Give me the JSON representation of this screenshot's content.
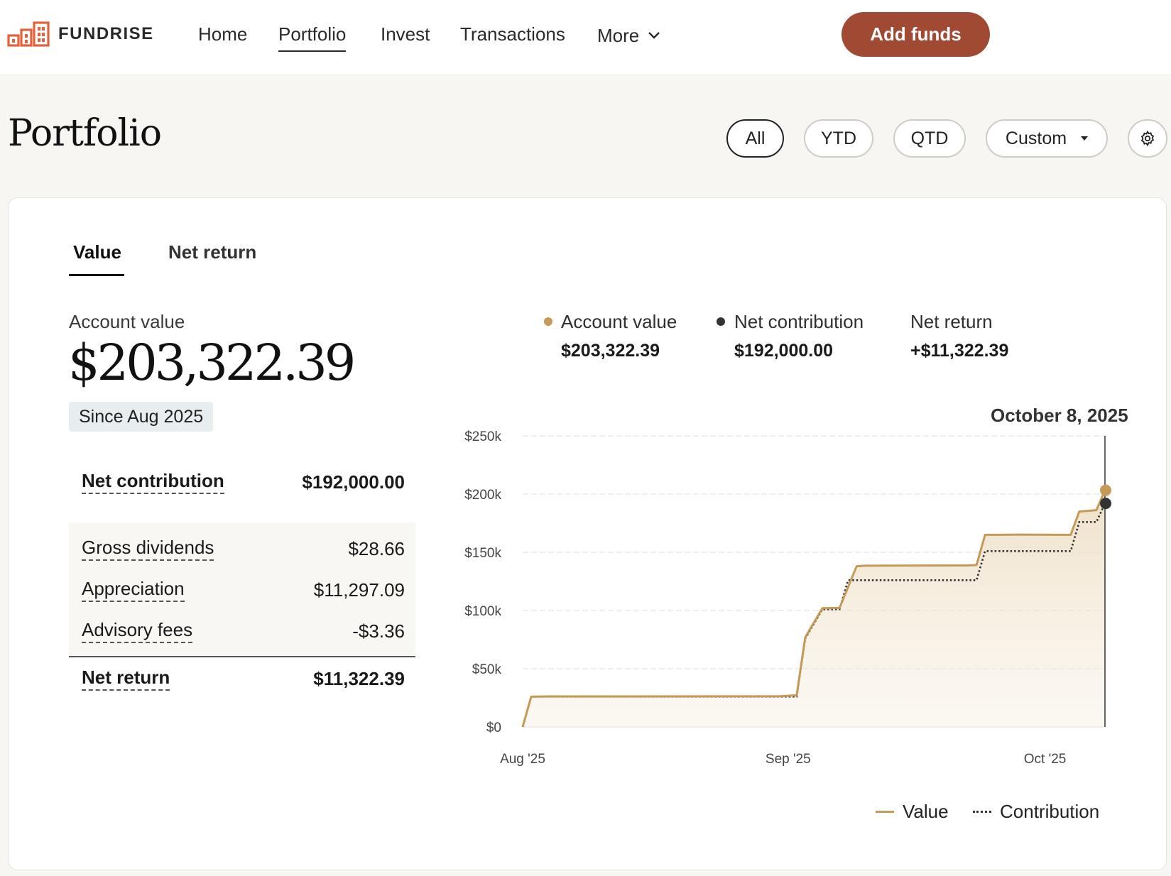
{
  "brand": {
    "name": "FUNDRISE",
    "accent": "#a04a33",
    "logo_color": "#e2603c"
  },
  "nav": {
    "items": [
      "Home",
      "Portfolio",
      "Invest",
      "Transactions",
      "More"
    ],
    "active": "Portfolio",
    "cta": "Add funds"
  },
  "page": {
    "title": "Portfolio",
    "range_filters": [
      "All",
      "YTD",
      "QTD"
    ],
    "custom_filter": "Custom",
    "selected_filter": "All"
  },
  "tabs": {
    "value": "Value",
    "net_return": "Net return",
    "active": "Value"
  },
  "account": {
    "label": "Account value",
    "value": "$203,322.39",
    "since": "Since Aug 2025"
  },
  "breakdown": {
    "net_contribution": {
      "label": "Net contribution",
      "value": "$192,000.00"
    },
    "gross_dividends": {
      "label": "Gross dividends",
      "value": "$28.66"
    },
    "appreciation": {
      "label": "Appreciation",
      "value": "$11,297.09"
    },
    "advisory_fees": {
      "label": "Advisory fees",
      "value": "-$3.36"
    },
    "net_return": {
      "label": "Net return",
      "value": "$11,322.39"
    }
  },
  "summary": {
    "account_value": {
      "label": "Account value",
      "value": "$203,322.39"
    },
    "net_contribution": {
      "label": "Net contribution",
      "value": "$192,000.00"
    },
    "net_return": {
      "label": "Net return",
      "value": "+$11,322.39"
    },
    "hover_date": "October 8, 2025"
  },
  "legend": {
    "value": "Value",
    "contribution": "Contribution"
  },
  "chart_data": {
    "type": "area",
    "x_tick_labels": [
      "Aug '25",
      "Sep '25",
      "Oct '25"
    ],
    "y_tick_labels": [
      "$0",
      "$50k",
      "$100k",
      "$150k",
      "$200k",
      "$250k"
    ],
    "ylim": [
      0,
      250000
    ],
    "xlim": [
      "2025-08-01",
      "2025-10-08"
    ],
    "grid": true,
    "legend_position": "bottom-right",
    "series": [
      {
        "name": "Value",
        "color": "#c49a56",
        "style": "solid-area",
        "points": [
          [
            "2025-08-01",
            0
          ],
          [
            "2025-08-02",
            26000
          ],
          [
            "2025-08-04",
            26200
          ],
          [
            "2025-08-31",
            26300
          ],
          [
            "2025-09-02",
            27200
          ],
          [
            "2025-09-03",
            77000
          ],
          [
            "2025-09-05",
            102000
          ],
          [
            "2025-09-07",
            102200
          ],
          [
            "2025-09-09",
            138000
          ],
          [
            "2025-09-10",
            138500
          ],
          [
            "2025-09-22",
            138700
          ],
          [
            "2025-09-23",
            139000
          ],
          [
            "2025-09-24",
            165000
          ],
          [
            "2025-09-28",
            165200
          ],
          [
            "2025-10-04",
            165000
          ],
          [
            "2025-10-05",
            185000
          ],
          [
            "2025-10-06",
            185600
          ],
          [
            "2025-10-07",
            186200
          ],
          [
            "2025-10-08",
            203322.39
          ]
        ]
      },
      {
        "name": "Contribution",
        "color": "#333333",
        "style": "dotted",
        "points": [
          [
            "2025-08-01",
            0
          ],
          [
            "2025-08-02",
            26000
          ],
          [
            "2025-09-02",
            26000
          ],
          [
            "2025-09-03",
            76000
          ],
          [
            "2025-09-05",
            101000
          ],
          [
            "2025-09-07",
            101000
          ],
          [
            "2025-09-08",
            126000
          ],
          [
            "2025-09-23",
            126000
          ],
          [
            "2025-09-24",
            151000
          ],
          [
            "2025-10-04",
            151000
          ],
          [
            "2025-10-05",
            176000
          ],
          [
            "2025-10-07",
            176000
          ],
          [
            "2025-10-08",
            192000
          ]
        ]
      }
    ]
  }
}
